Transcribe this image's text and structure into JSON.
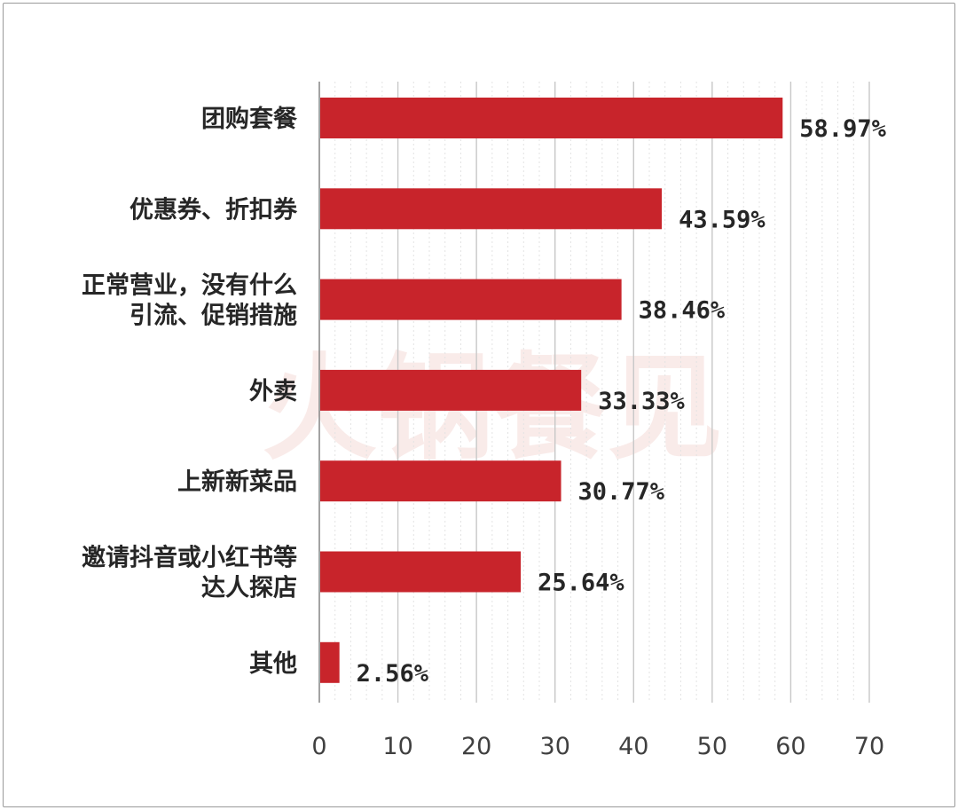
{
  "watermark": "火锅餐见",
  "chart_data": {
    "type": "bar",
    "orientation": "horizontal",
    "categories": [
      [
        "团购套餐"
      ],
      [
        "优惠券、折扣券"
      ],
      [
        "正常营业，没有什么",
        "引流、促销措施"
      ],
      [
        "外卖"
      ],
      [
        "上新新菜品"
      ],
      [
        "邀请抖音或小红书等",
        "达人探店"
      ],
      [
        "其他"
      ]
    ],
    "values": [
      58.97,
      43.59,
      38.46,
      33.33,
      30.77,
      25.64,
      2.56
    ],
    "value_labels": [
      "58.97%",
      "43.59%",
      "38.46%",
      "33.33%",
      "30.77%",
      "25.64%",
      "2.56%"
    ],
    "xlim": [
      0,
      70
    ],
    "xticks": [
      0,
      10,
      20,
      30,
      40,
      50,
      60,
      70
    ],
    "bar_color": "#c8242b",
    "grid": true,
    "legend": "none"
  }
}
